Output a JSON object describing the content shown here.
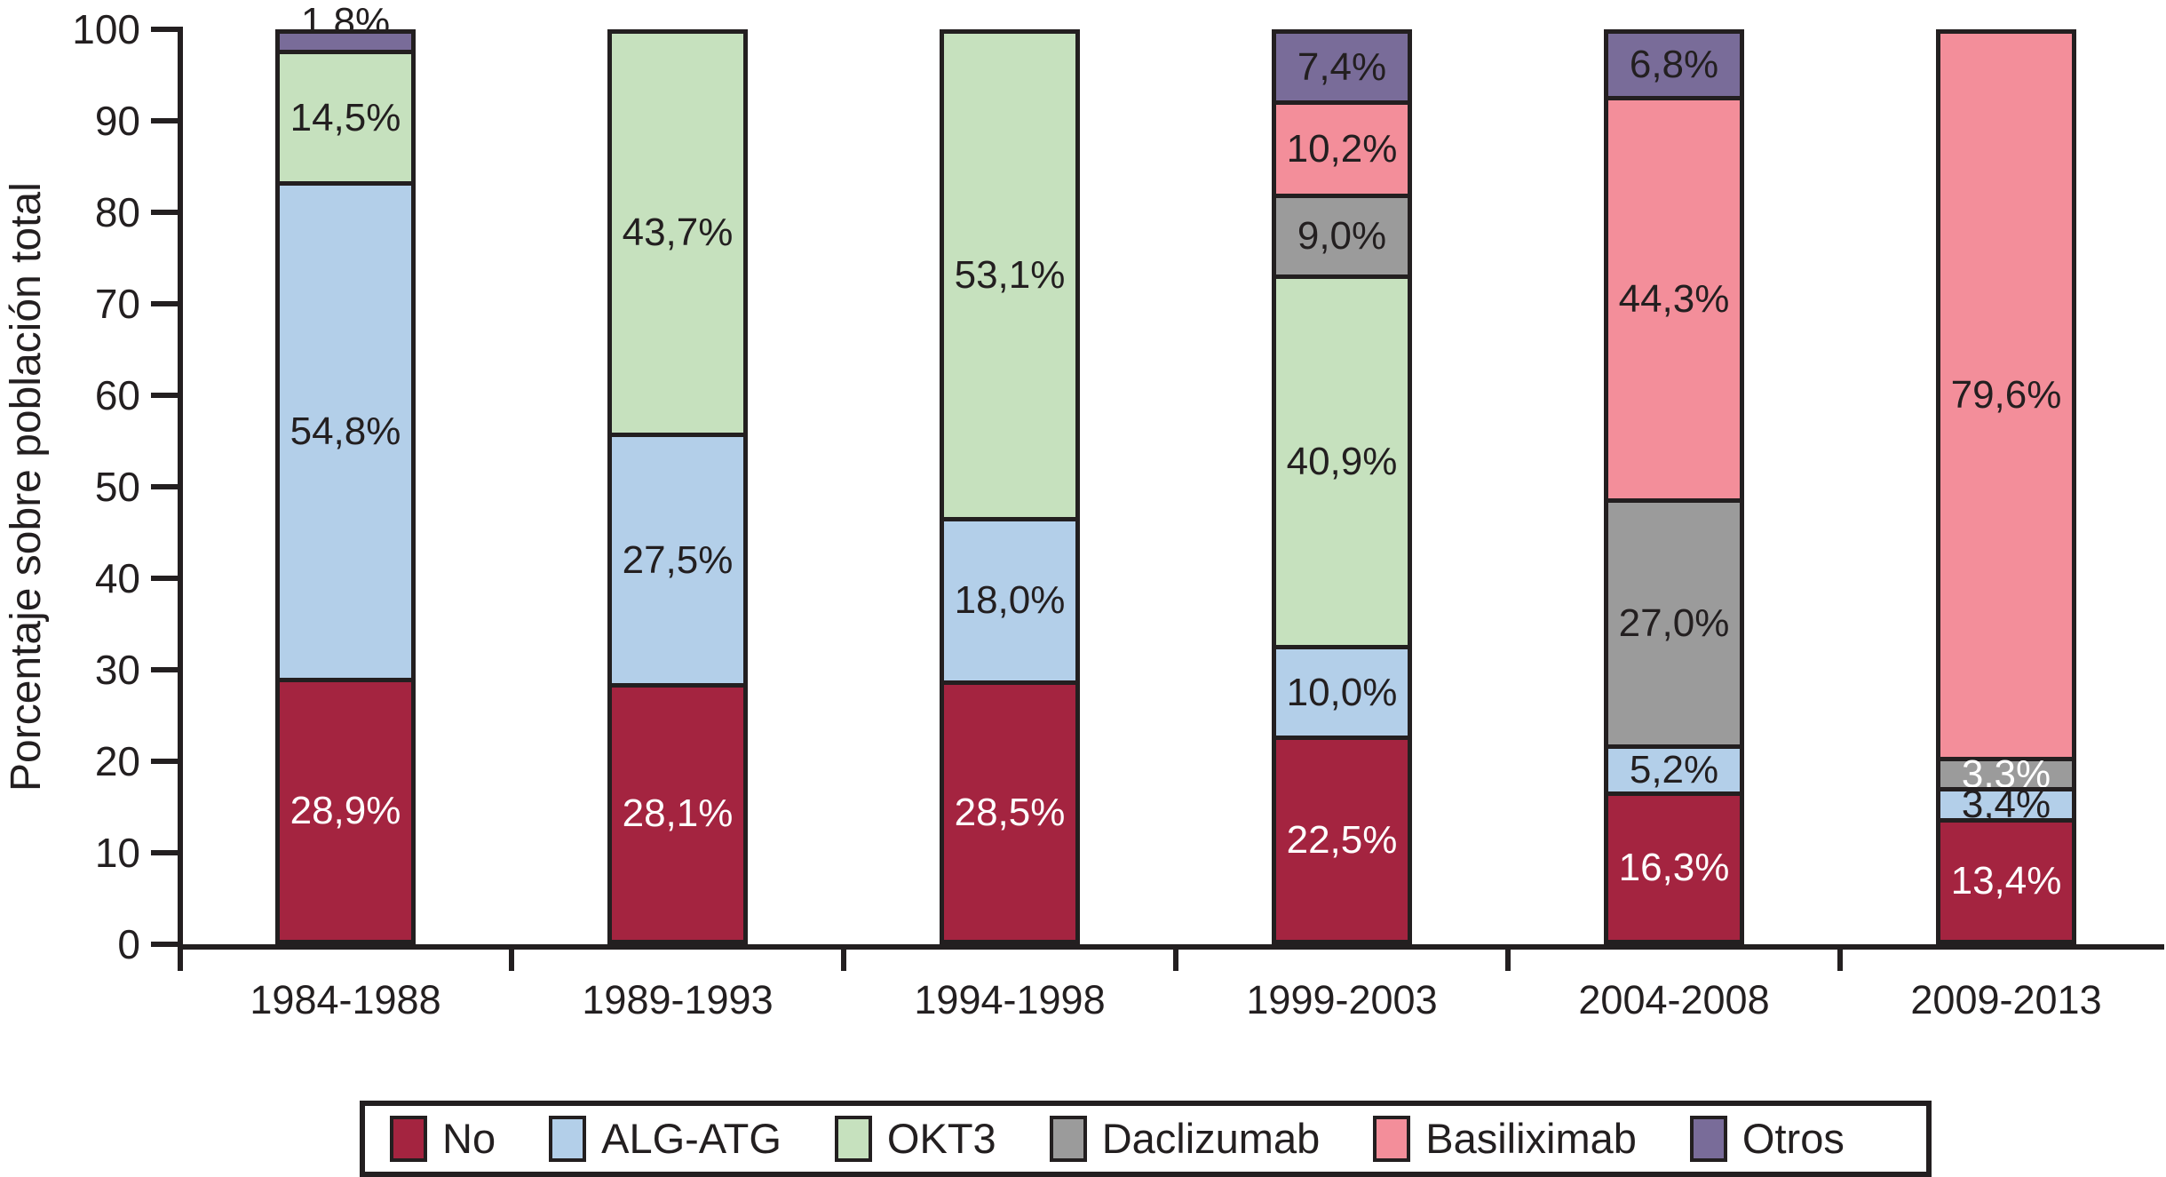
{
  "chart_data": {
    "type": "bar",
    "stacked": true,
    "title": "",
    "ylabel": "Porcentaje sobre población total",
    "xlabel": "",
    "ylim": [
      0,
      100
    ],
    "yticks": [
      "0",
      "10",
      "20",
      "30",
      "40",
      "50",
      "60",
      "70",
      "80",
      "90",
      "100"
    ],
    "grid": false,
    "legend_position": "bottom",
    "categories": [
      "1984-1988",
      "1989-1993",
      "1994-1998",
      "1999-2003",
      "2004-2008",
      "2009-2013"
    ],
    "series": [
      {
        "name": "No",
        "color": "#a42440",
        "label_color": "#ffffff",
        "values": [
          28.9,
          28.1,
          28.5,
          22.5,
          16.3,
          13.4
        ],
        "labels": [
          "28,9%",
          "28,1%",
          "28,5%",
          "22,5%",
          "16,3%",
          "13,4%"
        ]
      },
      {
        "name": "ALG-ATG",
        "color": "#b3cfe9",
        "label_color": "#231f20",
        "values": [
          54.8,
          27.5,
          18.0,
          10.0,
          5.2,
          3.4
        ],
        "labels": [
          "54,8%",
          "27,5%",
          "18,0%",
          "10,0%",
          "5,2%",
          "3,4%"
        ]
      },
      {
        "name": "OKT3",
        "color": "#c6e1be",
        "label_color": "#231f20",
        "values": [
          14.5,
          43.7,
          53.1,
          40.9,
          0,
          0
        ],
        "labels": [
          "14,5%",
          "43,7%",
          "53,1%",
          "40,9%",
          "",
          ""
        ]
      },
      {
        "name": "Daclizumab",
        "color": "#9b9b9b",
        "label_color": "#231f20",
        "label_color_overrides": {
          "5": "#ffffff"
        },
        "values": [
          0,
          0,
          0,
          9.0,
          27.0,
          3.3
        ],
        "labels": [
          "",
          "",
          "",
          "9,0%",
          "27,0%",
          "3,3%"
        ]
      },
      {
        "name": "Basiliximab",
        "color": "#f38e9a",
        "label_color": "#231f20",
        "values": [
          0,
          0,
          0,
          10.2,
          44.3,
          79.6
        ],
        "labels": [
          "",
          "",
          "",
          "10,2%",
          "44,3%",
          "79,6%"
        ]
      },
      {
        "name": "Otros",
        "color": "#796c99",
        "label_color": "#231f20",
        "outside_label_indices": [
          0
        ],
        "values": [
          1.8,
          0,
          0,
          7.4,
          6.8,
          0
        ],
        "labels": [
          "1,8%",
          "",
          "",
          "7,4%",
          "6,8%",
          ""
        ]
      }
    ]
  }
}
